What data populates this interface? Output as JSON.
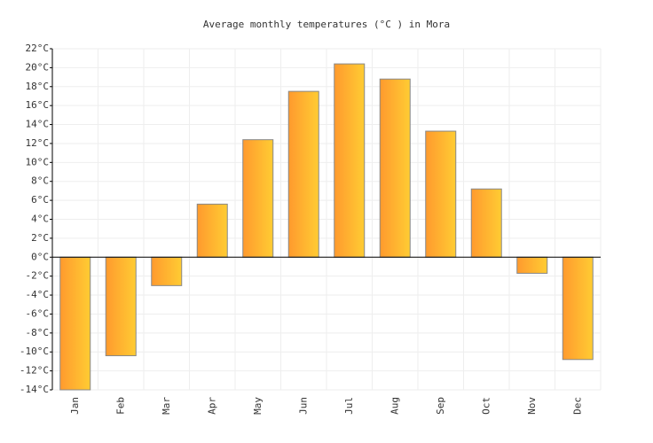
{
  "chart_data": {
    "type": "bar",
    "title": "Average monthly temperatures (°C ) in Mora",
    "categories": [
      "Jan",
      "Feb",
      "Mar",
      "Apr",
      "May",
      "Jun",
      "Jul",
      "Aug",
      "Sep",
      "Oct",
      "Nov",
      "Dec"
    ],
    "values": [
      -14,
      -10.4,
      -3,
      5.6,
      12.4,
      17.5,
      20.4,
      18.8,
      13.3,
      7.2,
      -1.7,
      -10.8
    ],
    "color": [
      "#ff9a2e",
      "#ffcc33"
    ],
    "ylim": [
      -14,
      22
    ],
    "yticks": [
      {
        "value": -14,
        "label": "-14°C"
      },
      {
        "value": -12,
        "label": "-12°C"
      },
      {
        "value": -10,
        "label": "-10°C"
      },
      {
        "value": -8,
        "label": "-8°C"
      },
      {
        "value": -6,
        "label": "-6°C"
      },
      {
        "value": -4,
        "label": "-4°C"
      },
      {
        "value": -2,
        "label": "-2°C"
      },
      {
        "value": 0,
        "label": "0°C"
      },
      {
        "value": 2,
        "label": "2°C"
      },
      {
        "value": 4,
        "label": "4°C"
      },
      {
        "value": 6,
        "label": "6°C"
      },
      {
        "value": 8,
        "label": "8°C"
      },
      {
        "value": 10,
        "label": "10°C"
      },
      {
        "value": 12,
        "label": "12°C"
      },
      {
        "value": 14,
        "label": "14°C"
      },
      {
        "value": 16,
        "label": "16°C"
      },
      {
        "value": 18,
        "label": "18°C"
      },
      {
        "value": 20,
        "label": "20°C"
      },
      {
        "value": 22,
        "label": "22°C"
      }
    ],
    "grid": true
  }
}
